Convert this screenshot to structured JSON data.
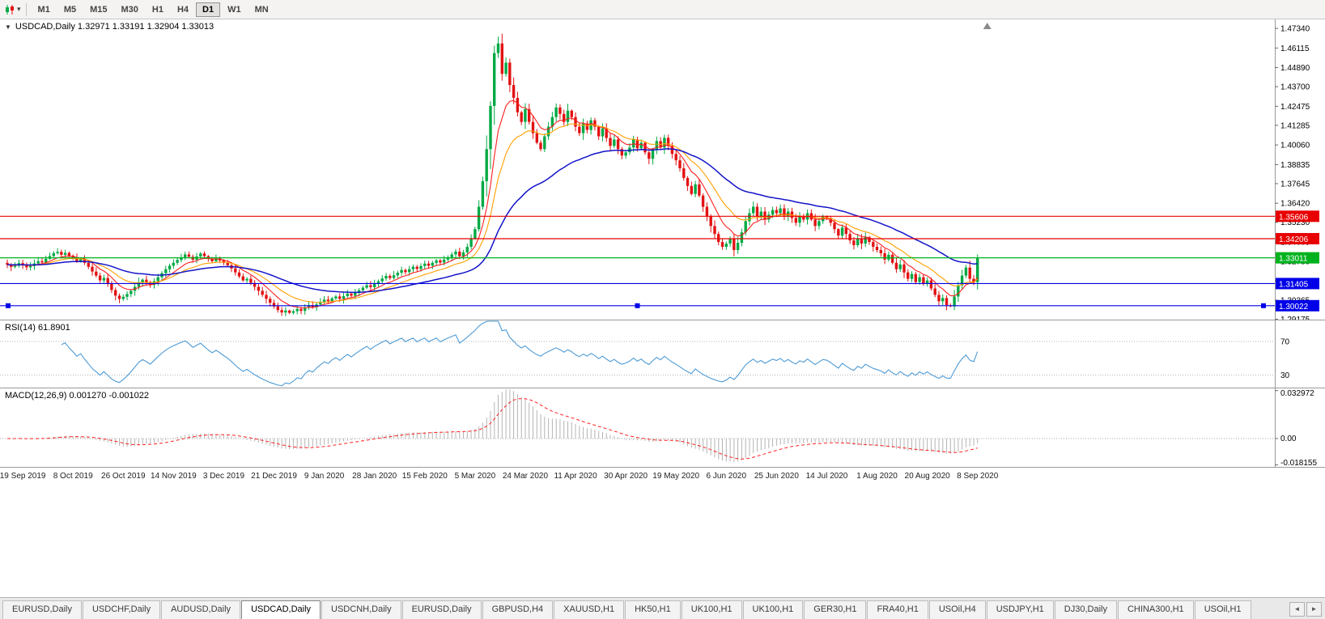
{
  "icons": {
    "chart_menu_arrow": "▼",
    "toolbar_caret": "▾",
    "tab_scroll_left": "◄",
    "tab_scroll_right": "►"
  },
  "toolbar": {
    "timeframes": [
      {
        "label": "M1"
      },
      {
        "label": "M5"
      },
      {
        "label": "M15"
      },
      {
        "label": "M30"
      },
      {
        "label": "H1"
      },
      {
        "label": "H4"
      },
      {
        "label": "D1",
        "active": true
      },
      {
        "label": "W1"
      },
      {
        "label": "MN"
      }
    ]
  },
  "chart": {
    "title_line": "USDCAD,Daily 1.32971 1.33191 1.32904 1.33013",
    "symbol": "USDCAD",
    "period": "Daily",
    "ohlc": {
      "open": "1.32971",
      "high": "1.33191",
      "low": "1.32904",
      "close": "1.33013"
    }
  },
  "rsi": {
    "label": "RSI(14) 61.8901"
  },
  "macd": {
    "label": "MACD(12,26,9) 0.001270 -0.001022"
  },
  "tabs": {
    "active_index": 3,
    "items": [
      "EURUSD,Daily",
      "USDCHF,Daily",
      "AUDUSD,Daily",
      "USDCAD,Daily",
      "USDCNH,Daily",
      "EURUSD,Daily",
      "GBPUSD,H4",
      "XAUUSD,H1",
      "HK50,H1",
      "UK100,H1",
      "UK100,H1",
      "GER30,H1",
      "FRA40,H1",
      "USOil,H4",
      "USDJPY,H1",
      "DJ30,Daily",
      "CHINA300,H1",
      "USOil,H1"
    ]
  },
  "chart_data": [
    {
      "type": "candlestick",
      "title": "USDCAD,Daily",
      "current_bar": {
        "open": 1.32971,
        "high": 1.33191,
        "low": 1.32904,
        "close": 1.33013
      },
      "ylim": [
        1.289,
        1.479
      ],
      "y_ticks": [
        "1.47340",
        "1.46115",
        "1.44890",
        "1.43700",
        "1.42475",
        "1.41285",
        "1.40060",
        "1.38835",
        "1.37645",
        "1.36420",
        "1.35230",
        "1.34005",
        "1.32780",
        "1.31590",
        "1.30365",
        "1.29175"
      ],
      "x_labels": [
        "19 Sep 2019",
        "8 Oct 2019",
        "26 Oct 2019",
        "14 Nov 2019",
        "3 Dec 2019",
        "21 Dec 2019",
        "9 Jan 2020",
        "28 Jan 2020",
        "15 Feb 2020",
        "5 Mar 2020",
        "24 Mar 2020",
        "11 Apr 2020",
        "30 Apr 2020",
        "19 May 2020",
        "6 Jun 2020",
        "25 Jun 2020",
        "14 Jul 2020",
        "1 Aug 2020",
        "20 Aug 2020",
        "8 Sep 2020"
      ],
      "x_label_start": 4,
      "x_label_step": 13,
      "closes": [
        1.3258,
        1.3245,
        1.3252,
        1.3268,
        1.3255,
        1.3242,
        1.325,
        1.3266,
        1.328,
        1.3272,
        1.3295,
        1.3312,
        1.333,
        1.3338,
        1.332,
        1.3332,
        1.3315,
        1.33,
        1.3282,
        1.3295,
        1.327,
        1.3245,
        1.3215,
        1.319,
        1.316,
        1.3175,
        1.314,
        1.31,
        1.3065,
        1.3045,
        1.3058,
        1.3075,
        1.3095,
        1.312,
        1.3148,
        1.3165,
        1.315,
        1.3132,
        1.3155,
        1.318,
        1.3205,
        1.323,
        1.3252,
        1.327,
        1.3288,
        1.3305,
        1.3322,
        1.3308,
        1.329,
        1.331,
        1.3328,
        1.3312,
        1.3295,
        1.328,
        1.3298,
        1.3285,
        1.327,
        1.3255,
        1.3235,
        1.321,
        1.3185,
        1.316,
        1.317,
        1.3145,
        1.312,
        1.3095,
        1.307,
        1.3045,
        1.302,
        1.2998,
        1.2975,
        1.296,
        1.2972,
        1.2958,
        1.2968,
        1.2982,
        1.297,
        1.299,
        1.3005,
        1.2992,
        1.301,
        1.3025,
        1.304,
        1.303,
        1.3048,
        1.306,
        1.3045,
        1.3062,
        1.3078,
        1.3065,
        1.3082,
        1.3098,
        1.3115,
        1.313,
        1.3118,
        1.314,
        1.3155,
        1.3172,
        1.3188,
        1.3175,
        1.3192,
        1.3208,
        1.3225,
        1.3212,
        1.323,
        1.3245,
        1.3232,
        1.325,
        1.3265,
        1.3252,
        1.327,
        1.3285,
        1.3272,
        1.329,
        1.3305,
        1.3322,
        1.334,
        1.331,
        1.3335,
        1.337,
        1.342,
        1.348,
        1.362,
        1.378,
        1.398,
        1.425,
        1.458,
        1.464,
        1.445,
        1.452,
        1.438,
        1.43,
        1.421,
        1.415,
        1.423,
        1.415,
        1.408,
        1.402,
        1.398,
        1.406,
        1.412,
        1.418,
        1.424,
        1.42,
        1.415,
        1.422,
        1.418,
        1.412,
        1.408,
        1.414,
        1.41,
        1.416,
        1.412,
        1.406,
        1.411,
        1.405,
        1.4,
        1.404,
        1.398,
        1.394,
        1.396,
        1.399,
        1.404,
        1.3985,
        1.402,
        1.396,
        1.392,
        1.398,
        1.403,
        1.399,
        1.405,
        1.4,
        1.395,
        1.391,
        1.386,
        1.38,
        1.375,
        1.37,
        1.376,
        1.369,
        1.362,
        1.356,
        1.35,
        1.345,
        1.34,
        1.337,
        1.339,
        1.342,
        1.335,
        1.3395,
        1.346,
        1.353,
        1.358,
        1.362,
        1.356,
        1.359,
        1.354,
        1.357,
        1.36,
        1.358,
        1.361,
        1.356,
        1.359,
        1.355,
        1.352,
        1.356,
        1.354,
        1.358,
        1.354,
        1.35,
        1.353,
        1.356,
        1.355,
        1.352,
        1.348,
        1.344,
        1.349,
        1.345,
        1.341,
        1.338,
        1.342,
        1.339,
        1.343,
        1.34,
        1.337,
        1.335,
        1.333,
        1.329,
        1.332,
        1.327,
        1.323,
        1.326,
        1.321,
        1.317,
        1.32,
        1.315,
        1.318,
        1.314,
        1.316,
        1.311,
        1.307,
        1.303,
        1.305,
        1.3005,
        1.2998,
        1.306,
        1.313,
        1.319,
        1.324,
        1.317,
        1.315,
        1.3301
      ],
      "bull_color": "#00A944",
      "bear_color": "#E21212",
      "moving_averages": [
        {
          "name": "fast-ma",
          "period": 8,
          "color": "#FF1E1E",
          "width": 1.1
        },
        {
          "name": "mid-ma",
          "period": 16,
          "color": "#FFA000",
          "width": 1.1
        },
        {
          "name": "slow-ma",
          "period": 42,
          "color": "#1414C8",
          "width": 1.5
        }
      ],
      "h_lines": [
        {
          "value": 1.35606,
          "label": "1.35606",
          "color": "#E80000"
        },
        {
          "value": 1.34206,
          "label": "1.34206",
          "color": "#E80000"
        },
        {
          "value": 1.33011,
          "label": "1.33011",
          "color": "#00B31E"
        },
        {
          "value": 1.31405,
          "label": "1.31405",
          "color": "#0000E8"
        },
        {
          "value": 1.30022,
          "label": "1.30022",
          "color": "#0000E8",
          "selected": true
        }
      ]
    },
    {
      "type": "line",
      "name": "RSI",
      "label": "RSI(14) 61.8901",
      "period": 14,
      "current_value": 61.8901,
      "levels": [
        70,
        30
      ],
      "ylim": [
        15,
        95
      ],
      "color": "#4E9BD5"
    },
    {
      "type": "macd",
      "name": "MACD",
      "label": "MACD(12,26,9) 0.001270 -0.001022",
      "fast": 12,
      "slow": 26,
      "signal": 9,
      "current_macd": 0.00127,
      "current_signal": -0.001022,
      "ylim": [
        -0.0195,
        0.0345
      ],
      "y_ticks": [
        "0.032972",
        "0.00",
        "-0.018155"
      ],
      "histogram_color": "#B4B4B4",
      "signal_color": "#FF2020"
    }
  ]
}
